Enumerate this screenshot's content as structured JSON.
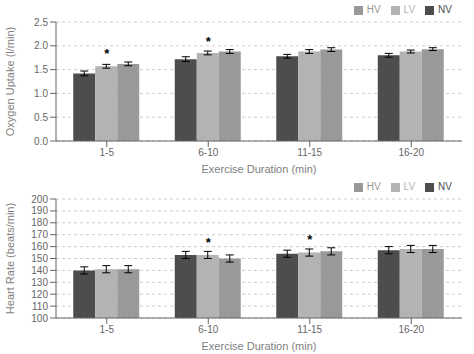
{
  "chart_data": [
    {
      "type": "bar",
      "xlabel": "Exercise Duration (min)",
      "ylabel": "Oxygen Uptake (l/min)",
      "categories": [
        "1-5",
        "6-10",
        "11-15",
        "16-20"
      ],
      "series": [
        {
          "name": "NV",
          "color": "#4d4d4d",
          "values": [
            1.42,
            1.72,
            1.78,
            1.8
          ],
          "errors": [
            0.05,
            0.05,
            0.04,
            0.04
          ]
        },
        {
          "name": "LV",
          "color": "#b3b3b3",
          "values": [
            1.57,
            1.85,
            1.88,
            1.88
          ],
          "errors": [
            0.04,
            0.04,
            0.04,
            0.03
          ]
        },
        {
          "name": "HV",
          "color": "#999999",
          "values": [
            1.62,
            1.88,
            1.92,
            1.93
          ],
          "errors": [
            0.04,
            0.04,
            0.04,
            0.03
          ]
        }
      ],
      "ylim": [
        0,
        2.5
      ],
      "yticks": [
        {
          "value": 0,
          "label": "0.0"
        },
        0.5,
        {
          "value": 1.0,
          "label": "1.0"
        },
        1.5,
        {
          "value": 2.0,
          "label": "2.0"
        },
        2.5
      ],
      "grid": true,
      "legend": "upper right",
      "annotations": [
        {
          "category": "1-5",
          "text": "*"
        },
        {
          "category": "6-10",
          "text": "*"
        }
      ]
    },
    {
      "type": "bar",
      "xlabel": "Exercise Duration (min)",
      "ylabel": "Heart Rate (beats/min)",
      "categories": [
        "1-5",
        "6-10",
        "11-15",
        "16-20"
      ],
      "series": [
        {
          "name": "NV",
          "color": "#4d4d4d",
          "values": [
            140,
            153,
            154,
            157
          ],
          "errors": [
            3,
            3,
            3,
            3
          ]
        },
        {
          "name": "LV",
          "color": "#b3b3b3",
          "values": [
            141,
            153,
            155,
            158
          ],
          "errors": [
            3,
            3,
            3,
            3
          ]
        },
        {
          "name": "HV",
          "color": "#999999",
          "values": [
            141,
            150,
            156,
            158
          ],
          "errors": [
            3,
            3,
            3,
            3
          ]
        }
      ],
      "ylim": [
        100,
        200
      ],
      "yticks": [
        100,
        110,
        120,
        130,
        140,
        150,
        160,
        170,
        180,
        190,
        200
      ],
      "grid": true,
      "legend": "upper right",
      "annotations": [
        {
          "category": "6-10",
          "text": "*"
        },
        {
          "category": "11-15",
          "text": "*"
        }
      ]
    }
  ]
}
